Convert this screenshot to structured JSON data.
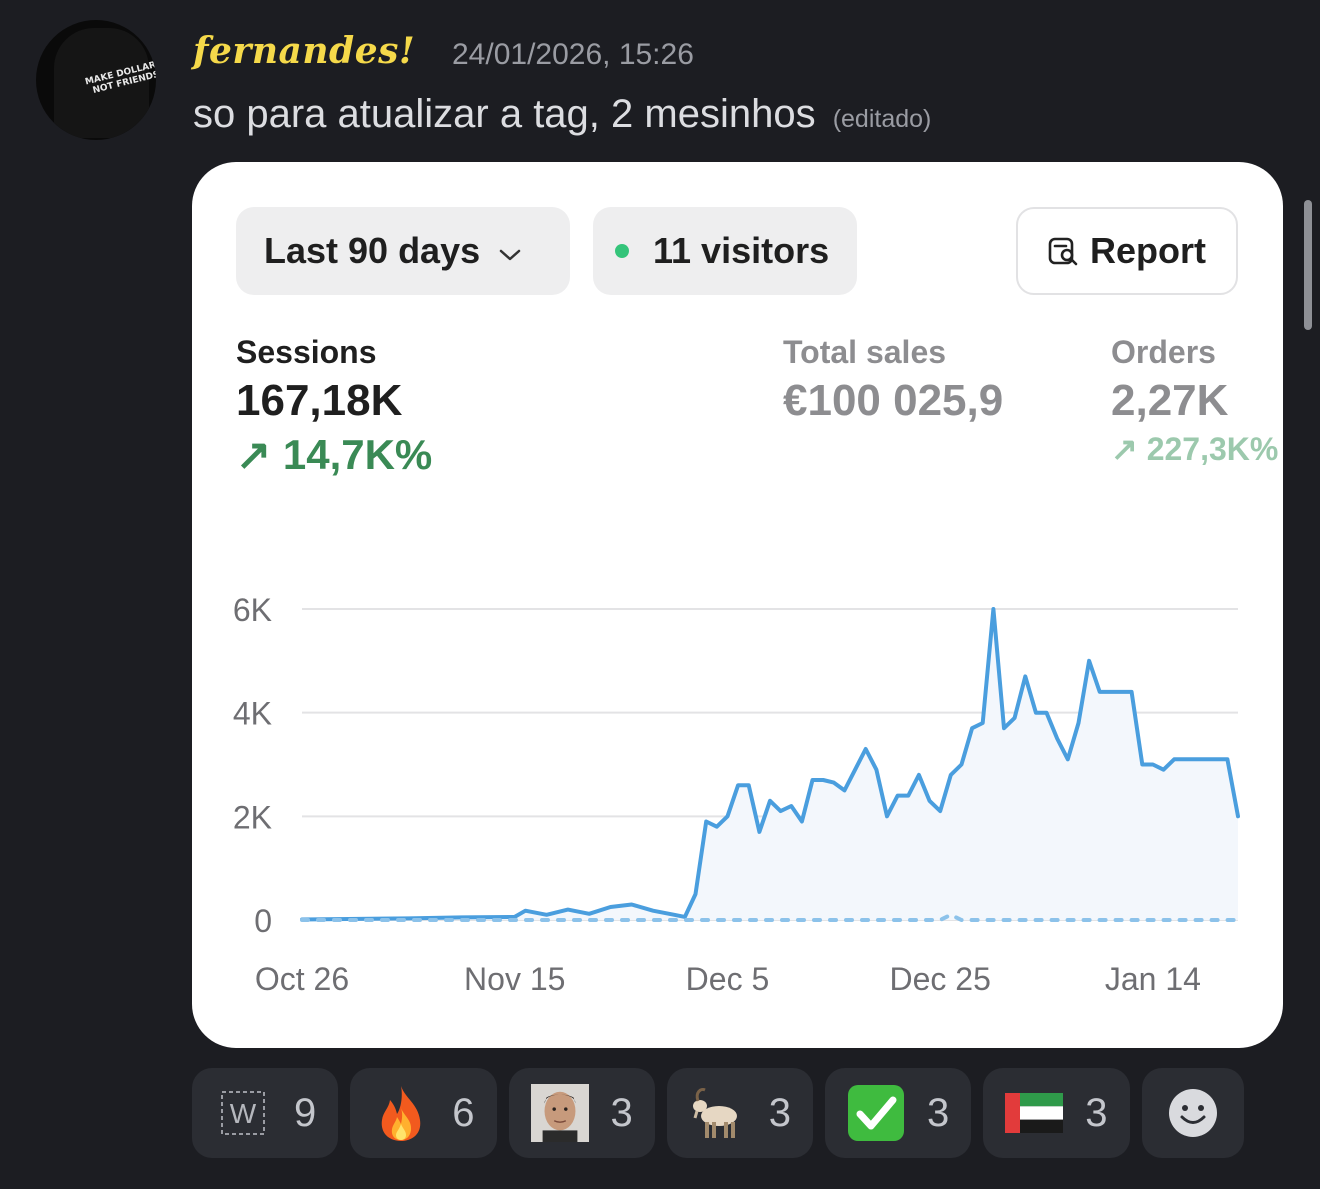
{
  "message": {
    "author": "fernandes!",
    "timestamp": "24/01/2026, 15:26",
    "text": "so para atualizar a tag, 2 mesinhos",
    "edited_label": "(editado)",
    "avatar_text": "MAKE DOLLARS NOT FRIENDS",
    "author_color": "#f5d94a"
  },
  "card": {
    "range_label": "Last 90 days",
    "visitors_label": "11 visitors",
    "report_label": "Report",
    "metrics": {
      "sessions": {
        "label": "Sessions",
        "value": "167,18K",
        "change": "↗ 14,7K%"
      },
      "total_sales": {
        "label": "Total sales",
        "value": "€100 025,9"
      },
      "orders": {
        "label": "Orders",
        "value": "2,27K",
        "change": "↗ 227,3K%"
      }
    }
  },
  "chart_data": {
    "type": "line",
    "y_ticks": [
      "6K",
      "4K",
      "2K",
      "0"
    ],
    "x_ticks": [
      "Oct 26",
      "Nov 15",
      "Dec 5",
      "Dec 25",
      "Jan 14"
    ],
    "ylim": [
      0,
      6000
    ],
    "grid": true,
    "series": [
      {
        "style": "solid",
        "color": "#4a9ede",
        "x": [
          "Oct 26",
          "Nov 5",
          "Nov 10",
          "Nov 15",
          "Nov 16",
          "Nov 18",
          "Nov 20",
          "Nov 22",
          "Nov 24",
          "Nov 26",
          "Nov 28",
          "Nov 30",
          "Dec 1",
          "Dec 2",
          "Dec 3",
          "Dec 4",
          "Dec 5",
          "Dec 6",
          "Dec 7",
          "Dec 8",
          "Dec 9",
          "Dec 10",
          "Dec 11",
          "Dec 12",
          "Dec 13",
          "Dec 14",
          "Dec 15",
          "Dec 16",
          "Dec 17",
          "Dec 18",
          "Dec 19",
          "Dec 20",
          "Dec 21",
          "Dec 22",
          "Dec 23",
          "Dec 24",
          "Dec 25",
          "Dec 26",
          "Dec 27",
          "Dec 28",
          "Dec 29",
          "Dec 30",
          "Dec 31",
          "Jan 1",
          "Jan 2",
          "Jan 3",
          "Jan 4",
          "Jan 5",
          "Jan 6",
          "Jan 7",
          "Jan 8",
          "Jan 9",
          "Jan 10",
          "Jan 11",
          "Jan 12",
          "Jan 13",
          "Jan 14",
          "Jan 15",
          "Jan 16",
          "Jan 17",
          "Jan 18",
          "Jan 19",
          "Jan 20",
          "Jan 21",
          "Jan 22"
        ],
        "values": [
          10,
          30,
          50,
          60,
          180,
          100,
          200,
          120,
          250,
          300,
          180,
          100,
          60,
          500,
          1900,
          1800,
          2000,
          2600,
          2600,
          1700,
          2300,
          2100,
          2200,
          1900,
          2700,
          2700,
          2650,
          2500,
          2900,
          3300,
          2900,
          2000,
          2400,
          2400,
          2800,
          2300,
          2100,
          2800,
          3000,
          3700,
          3800,
          6000,
          3700,
          3900,
          4700,
          4000,
          4000,
          3500,
          3100,
          3800,
          5000,
          4400,
          4400,
          4400,
          4400,
          3000,
          3000,
          2900,
          3100,
          3100,
          3100,
          3100,
          3100,
          3100,
          2000
        ]
      },
      {
        "style": "dotted",
        "color": "#8cc2ea",
        "values_note": "comparison period",
        "x": [
          "Oct 26",
          "Dec 5",
          "Dec 25",
          "Dec 26",
          "Dec 27",
          "Jan 22"
        ],
        "values": [
          0,
          0,
          0,
          100,
          0,
          0
        ]
      }
    ]
  },
  "reactions": [
    {
      "icon": "w-box-icon",
      "count": "9"
    },
    {
      "icon": "fire-icon",
      "count": "6"
    },
    {
      "icon": "face-photo-icon",
      "count": "3"
    },
    {
      "icon": "goat-icon",
      "count": "3"
    },
    {
      "icon": "check-mark-icon",
      "count": "3"
    },
    {
      "icon": "uae-flag-icon",
      "count": "3"
    },
    {
      "icon": "add-reaction-icon",
      "count": ""
    }
  ]
}
